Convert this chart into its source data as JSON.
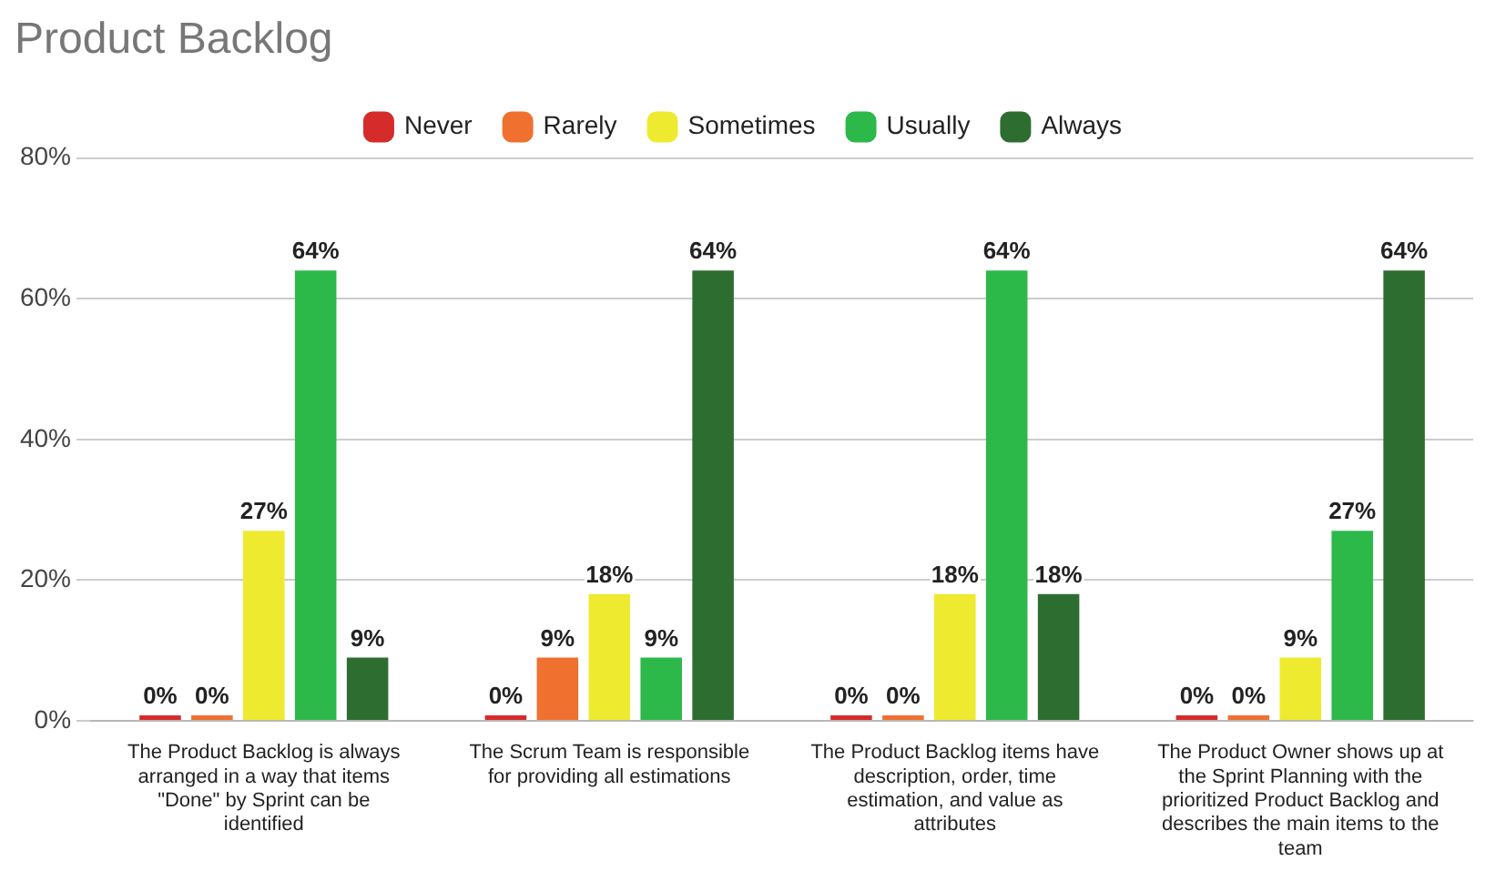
{
  "chart_data": {
    "type": "bar",
    "title": "Product Backlog",
    "categories": [
      "The Product Backlog is always arranged in a way that items \"Done\" by Sprint can be identified",
      "The Scrum Team is responsible for providing all estimations",
      "The Product Backlog items have description, order, time estimation, and value as attributes",
      "The Product Owner shows up at the Sprint Planning with the prioritized Product Backlog and describes the main items to the team"
    ],
    "series": [
      {
        "name": "Never",
        "color": "#d62b2b",
        "values": [
          0,
          0,
          0,
          0
        ],
        "value_labels": [
          "0%",
          "0%",
          "0%",
          "0%"
        ]
      },
      {
        "name": "Rarely",
        "color": "#f07030",
        "values": [
          0,
          9,
          0,
          0
        ],
        "value_labels": [
          "0%",
          "9%",
          "0%",
          "0%"
        ]
      },
      {
        "name": "Sometimes",
        "color": "#eeea30",
        "values": [
          27,
          18,
          18,
          9
        ],
        "value_labels": [
          "27%",
          "18%",
          "18%",
          "9%"
        ]
      },
      {
        "name": "Usually",
        "color": "#2db84a",
        "values": [
          64,
          9,
          64,
          27
        ],
        "value_labels": [
          "64%",
          "9%",
          "64%",
          "27%"
        ]
      },
      {
        "name": "Always",
        "color": "#2d6e30",
        "values": [
          9,
          64,
          18,
          64
        ],
        "value_labels": [
          "9%",
          "64%",
          "18%",
          "64%"
        ]
      }
    ],
    "ylim": [
      0,
      80
    ],
    "yticks": [
      {
        "value": 0,
        "label": "0%"
      },
      {
        "value": 20,
        "label": "20%"
      },
      {
        "value": 40,
        "label": "40%"
      },
      {
        "value": 60,
        "label": "60%"
      },
      {
        "value": 80,
        "label": "80%"
      }
    ],
    "grid": "y",
    "legend": "top"
  }
}
